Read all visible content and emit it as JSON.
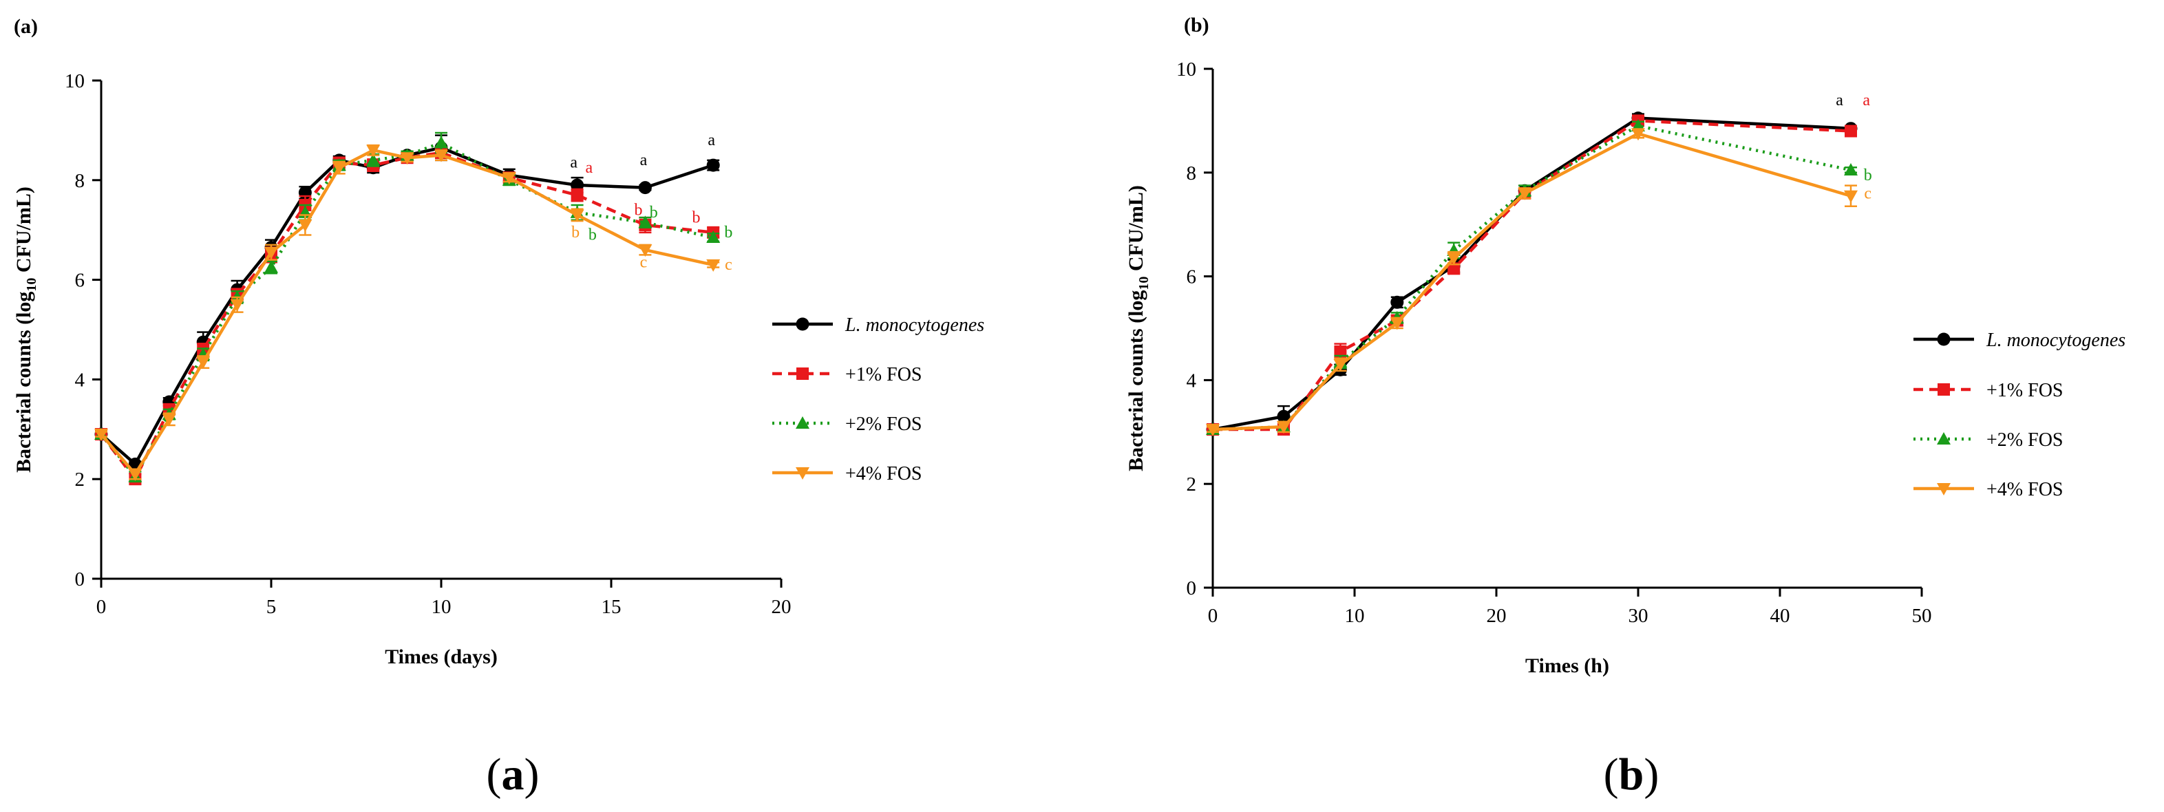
{
  "chart_data": [
    {
      "type": "line",
      "panel_label": "(a)",
      "caption": "(a)",
      "xlabel": "Times (days)",
      "ylabel_pre": "Bacterial counts (log",
      "ylabel_sub": "10",
      "ylabel_post": " CFU/mL)",
      "xlim": [
        0,
        20
      ],
      "ylim": [
        0,
        10
      ],
      "xticks": [
        "0",
        "5",
        "10",
        "15",
        "20"
      ],
      "yticks": [
        "0",
        "2",
        "4",
        "6",
        "8",
        "10"
      ],
      "grid": false,
      "legend_position": "right",
      "series": [
        {
          "name": "L. monocytogenes",
          "italic": true,
          "color": "#000000",
          "marker": "circle",
          "dash": "solid",
          "x": [
            0,
            1,
            2,
            3,
            4,
            5,
            6,
            7,
            8,
            9,
            10,
            12,
            14,
            16,
            18
          ],
          "y": [
            2.9,
            2.3,
            3.55,
            4.75,
            5.8,
            6.65,
            7.75,
            8.4,
            8.25,
            8.5,
            8.65,
            8.1,
            7.9,
            7.85,
            8.3
          ],
          "err": [
            0.05,
            0.05,
            0.08,
            0.2,
            0.18,
            0.15,
            0.12,
            0.08,
            0.1,
            0.08,
            0.25,
            0.12,
            0.15,
            0.05,
            0.1
          ]
        },
        {
          "name": "+1% FOS",
          "italic": false,
          "color": "#e8191c",
          "marker": "square",
          "dash": "dash",
          "x": [
            0,
            1,
            2,
            3,
            4,
            5,
            6,
            7,
            8,
            9,
            10,
            12,
            14,
            16,
            18
          ],
          "y": [
            2.9,
            2.0,
            3.4,
            4.6,
            5.7,
            6.5,
            7.5,
            8.35,
            8.3,
            8.45,
            8.55,
            8.05,
            7.7,
            7.1,
            6.95
          ],
          "err": [
            0.05,
            0.1,
            0.1,
            0.12,
            0.12,
            0.15,
            0.18,
            0.1,
            0.12,
            0.08,
            0.1,
            0.1,
            0.12,
            0.15,
            0.1
          ]
        },
        {
          "name": "+2% FOS",
          "italic": false,
          "color": "#1a9c1a",
          "marker": "triangle",
          "dash": "dot",
          "x": [
            0,
            1,
            2,
            3,
            4,
            5,
            6,
            7,
            8,
            9,
            10,
            12,
            14,
            16,
            18
          ],
          "y": [
            2.9,
            2.05,
            3.3,
            4.5,
            5.65,
            6.25,
            7.35,
            8.3,
            8.4,
            8.5,
            8.75,
            8.0,
            7.35,
            7.15,
            6.85
          ],
          "err": [
            0.05,
            0.1,
            0.1,
            0.12,
            0.12,
            0.12,
            0.15,
            0.1,
            0.12,
            0.08,
            0.2,
            0.1,
            0.15,
            0.1,
            0.08
          ]
        },
        {
          "name": "+4% FOS",
          "italic": false,
          "color": "#f7941d",
          "marker": "triangle-down",
          "dash": "solid",
          "x": [
            0,
            1,
            2,
            3,
            4,
            5,
            6,
            7,
            8,
            9,
            10,
            12,
            14,
            16,
            18
          ],
          "y": [
            2.9,
            2.1,
            3.2,
            4.35,
            5.5,
            6.55,
            7.1,
            8.25,
            8.6,
            8.45,
            8.5,
            8.05,
            7.3,
            6.6,
            6.3
          ],
          "err": [
            0.05,
            0.1,
            0.12,
            0.12,
            0.15,
            0.15,
            0.2,
            0.12,
            0.1,
            0.08,
            0.1,
            0.08,
            0.12,
            0.1,
            0.05
          ]
        }
      ],
      "annotations": [
        {
          "text": "a",
          "x": 13.9,
          "y": 8.25,
          "color": "#000000"
        },
        {
          "text": "a",
          "x": 14.35,
          "y": 8.15,
          "color": "#e8191c"
        },
        {
          "text": "a",
          "x": 15.95,
          "y": 8.3,
          "color": "#000000"
        },
        {
          "text": "a",
          "x": 17.95,
          "y": 8.7,
          "color": "#000000"
        },
        {
          "text": "b",
          "x": 15.8,
          "y": 7.3,
          "color": "#e8191c"
        },
        {
          "text": "b",
          "x": 16.25,
          "y": 7.25,
          "color": "#1a9c1a"
        },
        {
          "text": "b",
          "x": 17.5,
          "y": 7.15,
          "color": "#e8191c"
        },
        {
          "text": "b",
          "x": 18.45,
          "y": 6.85,
          "color": "#1a9c1a"
        },
        {
          "text": "b",
          "x": 13.95,
          "y": 6.85,
          "color": "#f7941d"
        },
        {
          "text": "b",
          "x": 14.45,
          "y": 6.8,
          "color": "#1a9c1a"
        },
        {
          "text": "c",
          "x": 15.95,
          "y": 6.25,
          "color": "#f7941d"
        },
        {
          "text": "c",
          "x": 18.45,
          "y": 6.2,
          "color": "#f7941d"
        }
      ]
    },
    {
      "type": "line",
      "panel_label": "(b)",
      "caption": "(b)",
      "xlabel": "Times (h)",
      "ylabel_pre": "Bacterial counts (log",
      "ylabel_sub": "10",
      "ylabel_post": " CFU/mL)",
      "xlim": [
        0,
        50
      ],
      "ylim": [
        0,
        10
      ],
      "xticks": [
        "0",
        "10",
        "20",
        "30",
        "40",
        "50"
      ],
      "yticks": [
        "0",
        "2",
        "4",
        "6",
        "8",
        "10"
      ],
      "grid": false,
      "legend_position": "right",
      "series": [
        {
          "name": "L. monocytogenes",
          "italic": true,
          "color": "#000000",
          "marker": "circle",
          "dash": "solid",
          "x": [
            0,
            5,
            9,
            13,
            17,
            22,
            30,
            45
          ],
          "y": [
            3.05,
            3.3,
            4.2,
            5.5,
            6.2,
            7.65,
            9.05,
            8.85
          ],
          "err": [
            0.05,
            0.2,
            0.1,
            0.1,
            0.12,
            0.1,
            0.08,
            0.05
          ]
        },
        {
          "name": "+1% FOS",
          "italic": false,
          "color": "#e8191c",
          "marker": "square",
          "dash": "dash",
          "x": [
            0,
            5,
            9,
            13,
            17,
            22,
            30,
            45
          ],
          "y": [
            3.05,
            3.05,
            4.55,
            5.15,
            6.15,
            7.6,
            9.0,
            8.8
          ],
          "err": [
            0.05,
            0.1,
            0.15,
            0.1,
            0.1,
            0.1,
            0.08,
            0.05
          ]
        },
        {
          "name": "+2% FOS",
          "italic": false,
          "color": "#1a9c1a",
          "marker": "triangle",
          "dash": "dot",
          "x": [
            0,
            5,
            9,
            13,
            17,
            22,
            30,
            45
          ],
          "y": [
            3.05,
            3.1,
            4.35,
            5.2,
            6.5,
            7.65,
            8.9,
            8.05
          ],
          "err": [
            0.05,
            0.1,
            0.12,
            0.1,
            0.15,
            0.1,
            0.08,
            0.05
          ]
        },
        {
          "name": "+4% FOS",
          "italic": false,
          "color": "#f7941d",
          "marker": "triangle-down",
          "dash": "solid",
          "x": [
            0,
            5,
            9,
            13,
            17,
            22,
            30,
            45
          ],
          "y": [
            3.05,
            3.1,
            4.3,
            5.1,
            6.35,
            7.6,
            8.75,
            7.55
          ],
          "err": [
            0.05,
            0.1,
            0.12,
            0.1,
            0.12,
            0.1,
            0.08,
            0.2
          ]
        }
      ],
      "annotations": [
        {
          "text": "a",
          "x": 44.2,
          "y": 9.3,
          "color": "#000000"
        },
        {
          "text": "a",
          "x": 46.1,
          "y": 9.3,
          "color": "#e8191c"
        },
        {
          "text": "b",
          "x": 46.2,
          "y": 7.85,
          "color": "#1a9c1a"
        },
        {
          "text": "c",
          "x": 46.2,
          "y": 7.5,
          "color": "#f7941d"
        }
      ]
    }
  ]
}
